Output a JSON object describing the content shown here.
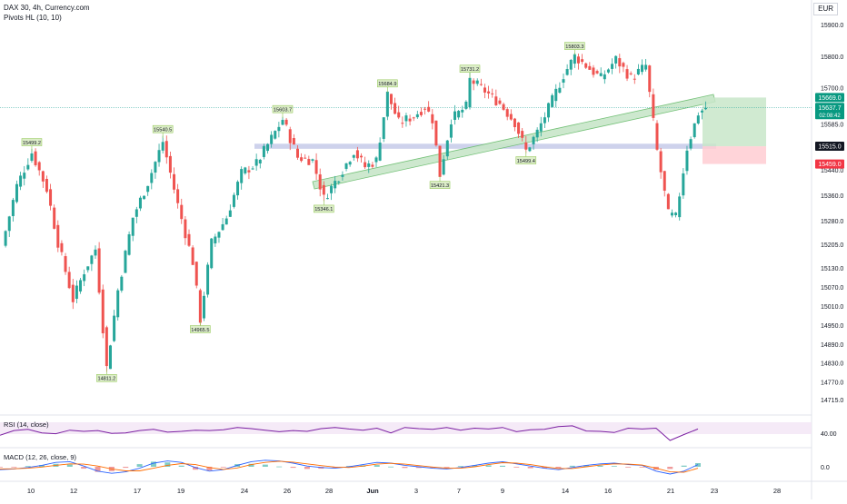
{
  "header": {
    "title": "DAX 30, 4h, Currency.com",
    "indicator": "Pivots HL (10, 10)",
    "currency": "EUR"
  },
  "colors": {
    "up": "#26a69a",
    "down": "#ef5350",
    "pivot_fill": "#dcedc8",
    "pivot_stroke": "#8bc34a",
    "zone": "#c5cae9",
    "channel_fill": "#c8e6c9",
    "channel_stroke": "#66bb6a",
    "rsi_line": "#7b1fa2",
    "rsi_band": "#f3e5f5",
    "macd_line": "#2962ff",
    "signal_line": "#ff6d00",
    "tag_green": "#089981",
    "tag_red": "#f23645",
    "tag_dark": "#131722"
  },
  "chart_data": {
    "type": "candlestick",
    "title": "DAX 30, 4h, Currency.com",
    "y_axis_ticks": [
      "15900.0",
      "15800.0",
      "15700.0",
      "15585.0",
      "15515.0",
      "15440.0",
      "15360.0",
      "15280.0",
      "15205.0",
      "15130.0",
      "15070.0",
      "15010.0",
      "14950.0",
      "14890.0",
      "14830.0",
      "14770.0",
      "14715.0"
    ],
    "ylim": [
      14680,
      15960
    ],
    "x_axis_ticks": [
      "10",
      "12",
      "17",
      "19",
      "24",
      "26",
      "28",
      "Jun",
      "3",
      "7",
      "9",
      "14",
      "16",
      "21",
      "23",
      "28"
    ],
    "pivot_labels": [
      {
        "text": "15499.2",
        "slot": 8,
        "price": 15499.2,
        "kind": "high"
      },
      {
        "text": "15540.5",
        "slot": 43,
        "price": 15540.5,
        "kind": "high"
      },
      {
        "text": "15603.7",
        "slot": 75,
        "price": 15603.7,
        "kind": "high"
      },
      {
        "text": "15684.9",
        "slot": 103,
        "price": 15684.9,
        "kind": "high"
      },
      {
        "text": "15731.2",
        "slot": 125,
        "price": 15731.2,
        "kind": "high"
      },
      {
        "text": "15803.3",
        "slot": 153,
        "price": 15803.3,
        "kind": "high"
      },
      {
        "text": "14811.2",
        "slot": 28,
        "price": 14811.2,
        "kind": "low"
      },
      {
        "text": "14965.5",
        "slot": 53,
        "price": 14965.5,
        "kind": "low"
      },
      {
        "text": "15346.1",
        "slot": 86,
        "price": 15346.1,
        "kind": "low"
      },
      {
        "text": "15421.3",
        "slot": 117,
        "price": 15421.3,
        "kind": "low"
      },
      {
        "text": "15499.4",
        "slot": 140,
        "price": 15499.4,
        "kind": "low"
      }
    ],
    "price_tags": [
      {
        "text": "15669.0",
        "price": 15669.0,
        "color": "tag_green"
      },
      {
        "text": "15637.7",
        "sub": "02:08:42",
        "price": 15637.7,
        "color": "tag_green"
      },
      {
        "text": "15515.0",
        "price": 15515.0,
        "color": "tag_dark"
      },
      {
        "text": "15459.0",
        "price": 15459.0,
        "color": "tag_red"
      }
    ],
    "levels": {
      "support_zone": [
        15507,
        15523
      ],
      "last_price_line": 15637.7,
      "position": {
        "entry": 15515.0,
        "target": 15669.0,
        "stop": 15459.0
      }
    },
    "ohlc_waypoints": [
      [
        0,
        15200
      ],
      [
        4,
        15390
      ],
      [
        8,
        15495
      ],
      [
        12,
        15380
      ],
      [
        15,
        15210
      ],
      [
        19,
        15030
      ],
      [
        22,
        15120
      ],
      [
        25,
        15190
      ],
      [
        28,
        14815
      ],
      [
        31,
        15060
      ],
      [
        35,
        15290
      ],
      [
        39,
        15400
      ],
      [
        43,
        15530
      ],
      [
        47,
        15330
      ],
      [
        51,
        15150
      ],
      [
        53,
        14968
      ],
      [
        56,
        15210
      ],
      [
        60,
        15290
      ],
      [
        64,
        15430
      ],
      [
        68,
        15460
      ],
      [
        72,
        15540
      ],
      [
        75,
        15600
      ],
      [
        79,
        15480
      ],
      [
        83,
        15470
      ],
      [
        86,
        15350
      ],
      [
        90,
        15420
      ],
      [
        94,
        15500
      ],
      [
        97,
        15450
      ],
      [
        100,
        15470
      ],
      [
        103,
        15680
      ],
      [
        106,
        15590
      ],
      [
        110,
        15610
      ],
      [
        113,
        15640
      ],
      [
        115,
        15600
      ],
      [
        117,
        15425
      ],
      [
        120,
        15600
      ],
      [
        124,
        15640
      ],
      [
        125,
        15725
      ],
      [
        129,
        15690
      ],
      [
        133,
        15650
      ],
      [
        137,
        15590
      ],
      [
        140,
        15500
      ],
      [
        143,
        15560
      ],
      [
        147,
        15660
      ],
      [
        150,
        15740
      ],
      [
        153,
        15800
      ],
      [
        156,
        15770
      ],
      [
        160,
        15730
      ],
      [
        164,
        15790
      ],
      [
        168,
        15730
      ],
      [
        172,
        15770
      ],
      [
        175,
        15500
      ],
      [
        178,
        15300
      ],
      [
        180,
        15290
      ],
      [
        183,
        15510
      ],
      [
        186,
        15620
      ],
      [
        188,
        15637
      ]
    ],
    "rsi": {
      "label": "RSI (14, close)",
      "tick": "40.00",
      "values": [
        40,
        52,
        55,
        46,
        44,
        53,
        50,
        52,
        45,
        46,
        52,
        55,
        48,
        50,
        53,
        52,
        54,
        60,
        57,
        53,
        49,
        52,
        50,
        57,
        60,
        56,
        53,
        58,
        46,
        60,
        57,
        55,
        60,
        53,
        58,
        56,
        60,
        49,
        54,
        55,
        62,
        64,
        51,
        50,
        47,
        58,
        56,
        58,
        27,
        42,
        56
      ]
    },
    "macd": {
      "label": "MACD (12, 26, close, 9)",
      "tick": "0.0",
      "macd_line": [
        -20,
        -15,
        -5,
        10,
        30,
        35,
        5,
        -30,
        -45,
        -35,
        -10,
        25,
        40,
        30,
        -5,
        -30,
        -20,
        10,
        35,
        45,
        40,
        25,
        5,
        -5,
        -10,
        0,
        15,
        30,
        25,
        10,
        0,
        -10,
        -15,
        -5,
        10,
        25,
        35,
        20,
        5,
        -10,
        -20,
        -5,
        10,
        20,
        25,
        15,
        10,
        -30,
        -50,
        -30,
        15
      ],
      "signal_line": [
        -15,
        -14,
        -10,
        -2,
        10,
        20,
        18,
        5,
        -15,
        -28,
        -28,
        -10,
        10,
        22,
        15,
        -5,
        -18,
        -8,
        15,
        30,
        38,
        32,
        20,
        8,
        -2,
        -5,
        5,
        18,
        24,
        18,
        8,
        -2,
        -10,
        -10,
        0,
        15,
        28,
        25,
        15,
        0,
        -12,
        -12,
        0,
        12,
        20,
        18,
        12,
        -10,
        -35,
        -38,
        -10
      ]
    }
  }
}
